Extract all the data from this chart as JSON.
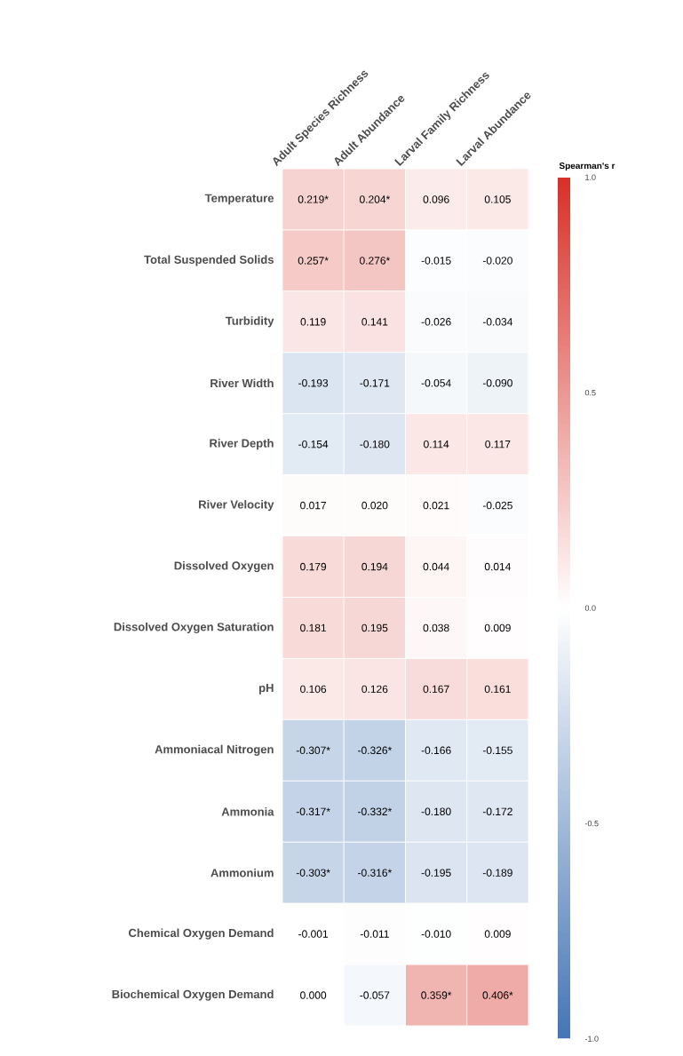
{
  "chart_data": {
    "type": "heatmap",
    "categories": [
      "Adult Species Richness",
      "Adult Abundance",
      "Larval Family Richness",
      "Larval Abundance"
    ],
    "y_categories": [
      "Temperature",
      "Total Suspended Solids",
      "Turbidity",
      "River Width",
      "River Depth",
      "River Velocity",
      "Dissolved Oxygen",
      "Dissolved Oxygen Saturation",
      "pH",
      "Ammoniacal Nitrogen",
      "Ammonia",
      "Ammonium",
      "Chemical Oxygen Demand",
      "Biochemical Oxygen Demand"
    ],
    "cells": [
      [
        0.219,
        0.204,
        0.096,
        0.105
      ],
      [
        0.257,
        0.276,
        -0.015,
        -0.02
      ],
      [
        0.119,
        0.141,
        -0.026,
        -0.034
      ],
      [
        -0.193,
        -0.171,
        -0.054,
        -0.09
      ],
      [
        -0.154,
        -0.18,
        0.114,
        0.117
      ],
      [
        0.017,
        0.02,
        0.021,
        -0.025
      ],
      [
        0.179,
        0.194,
        0.044,
        0.014
      ],
      [
        0.181,
        0.195,
        0.038,
        0.009
      ],
      [
        0.106,
        0.126,
        0.167,
        0.161
      ],
      [
        -0.307,
        -0.326,
        -0.166,
        -0.155
      ],
      [
        -0.317,
        -0.332,
        -0.18,
        -0.172
      ],
      [
        -0.303,
        -0.316,
        -0.195,
        -0.189
      ],
      [
        -0.001,
        -0.011,
        -0.01,
        0.009
      ],
      [
        0.0,
        -0.057,
        0.359,
        0.406
      ]
    ],
    "cell_labels": [
      [
        "0.219*",
        "0.204*",
        "0.096",
        "0.105"
      ],
      [
        "0.257*",
        "0.276*",
        "-0.015",
        "-0.020"
      ],
      [
        "0.119",
        "0.141",
        "-0.026",
        "-0.034"
      ],
      [
        "-0.193",
        "-0.171",
        "-0.054",
        "-0.090"
      ],
      [
        "-0.154",
        "-0.180",
        "0.114",
        "0.117"
      ],
      [
        "0.017",
        "0.020",
        "0.021",
        "-0.025"
      ],
      [
        "0.179",
        "0.194",
        "0.044",
        "0.014"
      ],
      [
        "0.181",
        "0.195",
        "0.038",
        "0.009"
      ],
      [
        "0.106",
        "0.126",
        "0.167",
        "0.161"
      ],
      [
        "-0.307*",
        "-0.326*",
        "-0.166",
        "-0.155"
      ],
      [
        "-0.317*",
        "-0.332*",
        "-0.180",
        "-0.172"
      ],
      [
        "-0.303*",
        "-0.316*",
        "-0.195",
        "-0.189"
      ],
      [
        "-0.001",
        "-0.011",
        "-0.010",
        "0.009"
      ],
      [
        "0.000",
        "-0.057",
        "0.359*",
        "0.406*"
      ]
    ],
    "clabel": "Spearman's r",
    "clim": [
      -1,
      1
    ],
    "cticks": [
      {
        "value": -1,
        "label": "-1.0"
      },
      {
        "value": -0.5,
        "label": "-0.5"
      },
      {
        "value": 0,
        "label": "0.0"
      },
      {
        "value": 0.5,
        "label": "0.5"
      },
      {
        "value": 1,
        "label": "1.0"
      }
    ]
  }
}
